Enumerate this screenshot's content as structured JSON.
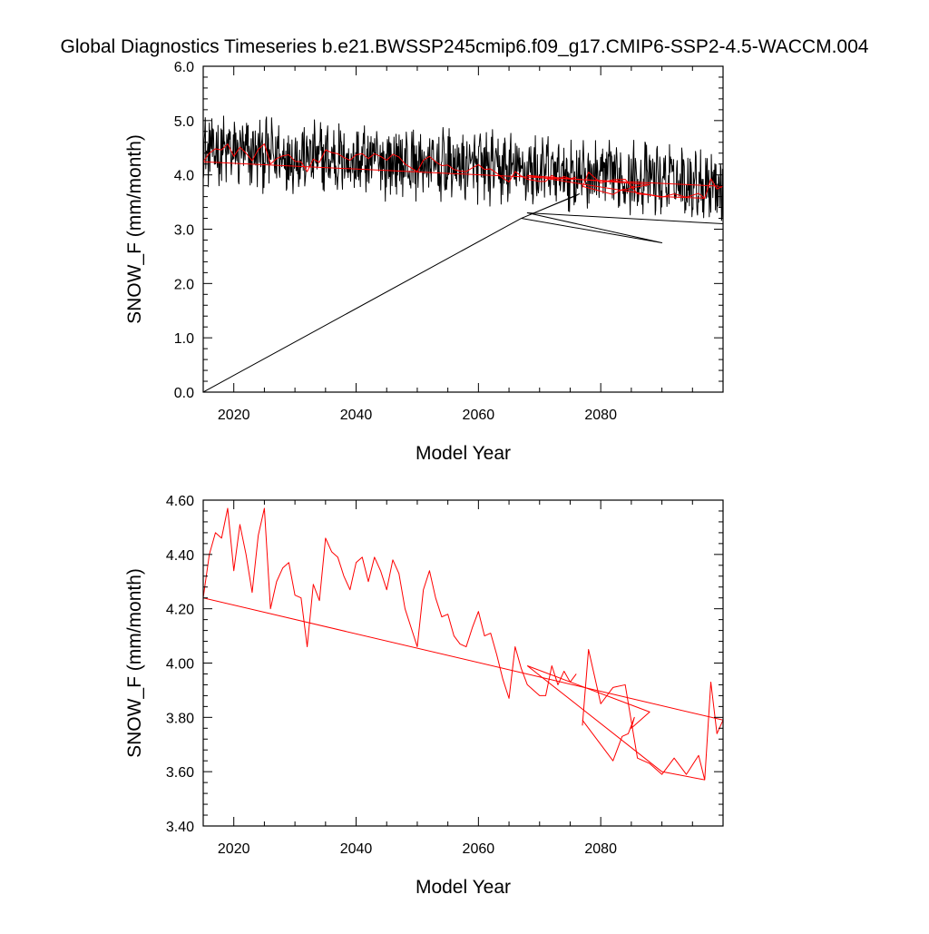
{
  "title": "Global Diagnostics Timeseries b.e21.BWSSP245cmip6.f09_g17.CMIP6-SSP2-4.5-WACCM.004",
  "colors": {
    "monthly": "#000000",
    "annual": "#ff0000",
    "axes": "#000000"
  },
  "chart_data": [
    {
      "type": "line",
      "ylabel": "SNOW_F (mm/month)",
      "xlabel": "Model Year",
      "xlim": [
        2015,
        2100
      ],
      "ylim": [
        0,
        6
      ],
      "x_ticks": [
        2020,
        2040,
        2060,
        2080
      ],
      "x_tick_labels": [
        "2020",
        "2040",
        "2060",
        "2080"
      ],
      "y_ticks": [
        0,
        1,
        2,
        3,
        4,
        5,
        6
      ],
      "y_tick_labels": [
        "0.0",
        "1.0",
        "2.0",
        "3.0",
        "4.0",
        "5.0",
        "6.0"
      ],
      "series": [
        {
          "id": "monthly",
          "color": "#000000",
          "x_start": 2015,
          "x_end": 2100,
          "steps": 1020,
          "trend": [
            4.45,
            3.85
          ],
          "amplitude": 0.55,
          "extra_segments": [
            {
              "x": [
                2015.0,
                2067.0,
                2076.5,
                2076.0,
                2067.0,
                2090.0,
                2068.0,
                2100.0
              ],
              "y": [
                0.0,
                3.2,
                3.65,
                3.62,
                3.2,
                2.75,
                3.3,
                3.1
              ]
            }
          ]
        },
        {
          "id": "annual",
          "color": "#ff0000",
          "x": [
            2015,
            2016,
            2017,
            2018,
            2019,
            2020,
            2021,
            2022,
            2023,
            2024,
            2025,
            2026,
            2027,
            2028,
            2029,
            2030,
            2031,
            2032,
            2033,
            2034,
            2035,
            2036,
            2037,
            2038,
            2039,
            2040,
            2041,
            2042,
            2043,
            2044,
            2045,
            2046,
            2047,
            2048,
            2049,
            2050,
            2051,
            2052,
            2053,
            2054,
            2055,
            2056,
            2057,
            2058,
            2059,
            2060,
            2061,
            2062,
            2063,
            2064,
            2065,
            2066,
            2067,
            2068,
            2069,
            2070,
            2071,
            2072,
            2073,
            2074,
            2075,
            2076
          ],
          "y": [
            4.24,
            4.4,
            4.48,
            4.46,
            4.57,
            4.34,
            4.51,
            4.4,
            4.26,
            4.47,
            4.57,
            4.2,
            4.3,
            4.35,
            4.37,
            4.25,
            4.24,
            4.06,
            4.29,
            4.23,
            4.46,
            4.41,
            4.39,
            4.32,
            4.27,
            4.37,
            4.39,
            4.3,
            4.39,
            4.34,
            4.27,
            4.38,
            4.33,
            4.2,
            4.13,
            4.06,
            4.27,
            4.34,
            4.24,
            4.17,
            4.18,
            4.1,
            4.07,
            4.06,
            4.13,
            4.19,
            4.1,
            4.11,
            4.03,
            3.94,
            3.87,
            4.06,
            3.98,
            3.92,
            3.9,
            3.88,
            3.88,
            3.99,
            3.92,
            3.97,
            3.93,
            3.96
          ],
          "extra_segments": [
            {
              "x": [
                2015,
                2100
              ],
              "y": [
                4.24,
                3.79
              ]
            },
            {
              "x": [
                2068.0,
                2088.0,
                2085.0,
                2085.5,
                2084.5,
                2083.5,
                2082.0,
                2077.0
              ],
              "y": [
                3.99,
                3.82,
                3.76,
                3.8,
                3.74,
                3.73,
                3.64,
                3.79
              ]
            },
            {
              "x": [
                2077.0,
                2078.0,
                2080.0,
                2082.0,
                2084.0,
                2086.0,
                2088.0,
                2090.0,
                2092.0,
                2094.0,
                2096.0,
                2097.0,
                2098.0,
                2099.0,
                2100.0
              ],
              "y": [
                3.77,
                4.05,
                3.85,
                3.91,
                3.92,
                3.65,
                3.63,
                3.59,
                3.65,
                3.59,
                3.66,
                3.57,
                3.93,
                3.74,
                3.79
              ]
            },
            {
              "x": [
                2068.0,
                2090.0,
                2097.0
              ],
              "y": [
                3.99,
                3.6,
                3.57
              ]
            }
          ]
        }
      ]
    },
    {
      "type": "line",
      "ylabel": "SNOW_F (mm/month)",
      "xlabel": "Model Year",
      "xlim": [
        2015,
        2100
      ],
      "ylim": [
        3.4,
        4.6
      ],
      "x_ticks": [
        2020,
        2040,
        2060,
        2080
      ],
      "x_tick_labels": [
        "2020",
        "2040",
        "2060",
        "2080"
      ],
      "y_ticks": [
        3.4,
        3.6,
        3.8,
        4.0,
        4.2,
        4.4,
        4.6
      ],
      "y_tick_labels": [
        "3.40",
        "3.60",
        "3.80",
        "4.00",
        "4.20",
        "4.40",
        "4.60"
      ],
      "series": [
        {
          "id": "annual",
          "color": "#ff0000",
          "x": [
            2015,
            2016,
            2017,
            2018,
            2019,
            2020,
            2021,
            2022,
            2023,
            2024,
            2025,
            2026,
            2027,
            2028,
            2029,
            2030,
            2031,
            2032,
            2033,
            2034,
            2035,
            2036,
            2037,
            2038,
            2039,
            2040,
            2041,
            2042,
            2043,
            2044,
            2045,
            2046,
            2047,
            2048,
            2049,
            2050,
            2051,
            2052,
            2053,
            2054,
            2055,
            2056,
            2057,
            2058,
            2059,
            2060,
            2061,
            2062,
            2063,
            2064,
            2065,
            2066,
            2067,
            2068,
            2069,
            2070,
            2071,
            2072,
            2073,
            2074,
            2075,
            2076
          ],
          "y": [
            4.24,
            4.4,
            4.48,
            4.46,
            4.57,
            4.34,
            4.51,
            4.4,
            4.26,
            4.47,
            4.57,
            4.2,
            4.3,
            4.35,
            4.37,
            4.25,
            4.24,
            4.06,
            4.29,
            4.23,
            4.46,
            4.41,
            4.39,
            4.32,
            4.27,
            4.37,
            4.39,
            4.3,
            4.39,
            4.34,
            4.27,
            4.38,
            4.33,
            4.2,
            4.13,
            4.06,
            4.27,
            4.34,
            4.24,
            4.17,
            4.18,
            4.1,
            4.07,
            4.06,
            4.13,
            4.19,
            4.1,
            4.11,
            4.03,
            3.94,
            3.87,
            4.06,
            3.98,
            3.92,
            3.9,
            3.88,
            3.88,
            3.99,
            3.92,
            3.97,
            3.93,
            3.96
          ],
          "extra_segments": [
            {
              "x": [
                2015,
                2100
              ],
              "y": [
                4.24,
                3.79
              ]
            },
            {
              "x": [
                2068.0,
                2088.0,
                2085.0,
                2085.5,
                2084.5,
                2083.5,
                2082.0,
                2077.0
              ],
              "y": [
                3.99,
                3.82,
                3.76,
                3.8,
                3.74,
                3.73,
                3.64,
                3.79
              ]
            },
            {
              "x": [
                2077.0,
                2078.0,
                2080.0,
                2082.0,
                2084.0,
                2086.0,
                2088.0,
                2090.0,
                2092.0,
                2094.0,
                2096.0,
                2097.0,
                2098.0,
                2099.0,
                2100.0
              ],
              "y": [
                3.77,
                4.05,
                3.85,
                3.91,
                3.92,
                3.65,
                3.63,
                3.59,
                3.65,
                3.59,
                3.66,
                3.57,
                3.93,
                3.74,
                3.79
              ]
            },
            {
              "x": [
                2068.0,
                2090.0,
                2097.0
              ],
              "y": [
                3.99,
                3.6,
                3.57
              ]
            }
          ]
        }
      ]
    }
  ]
}
